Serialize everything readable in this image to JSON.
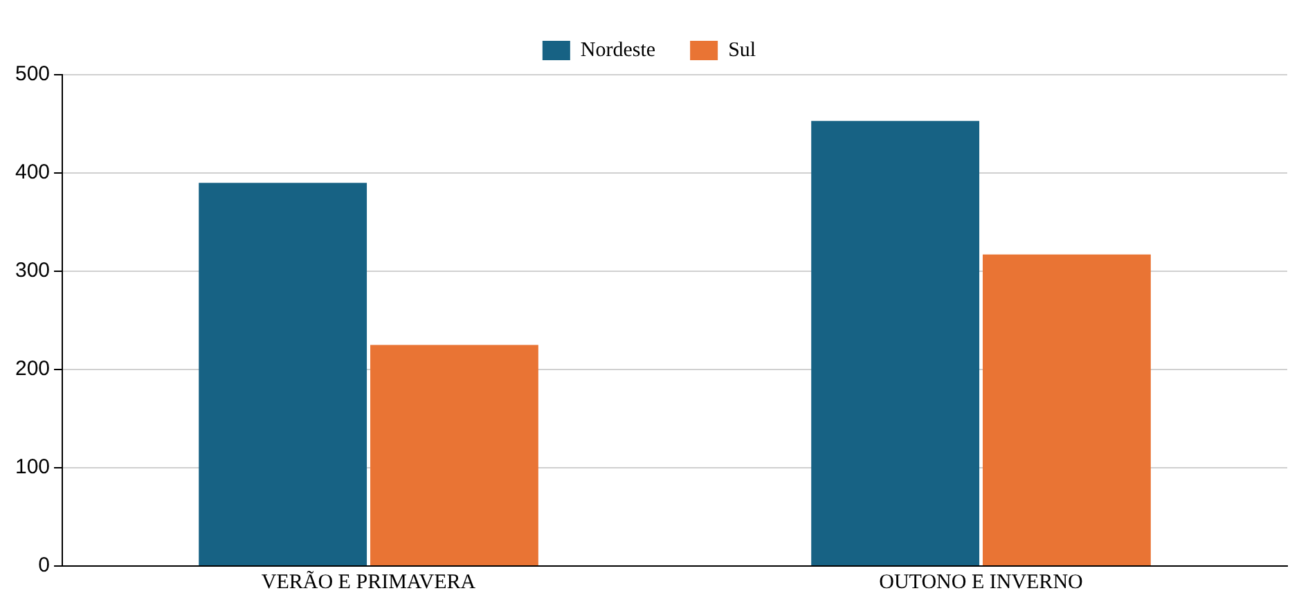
{
  "chart_data": {
    "type": "bar",
    "categories": [
      "VERÃO E PRIMAVERA",
      "OUTONO E INVERNO"
    ],
    "series": [
      {
        "name": "Nordeste",
        "color": "#176284",
        "values": [
          390,
          453
        ]
      },
      {
        "name": "Sul",
        "color": "#e97434",
        "values": [
          225,
          317
        ]
      }
    ],
    "ylim": [
      0,
      500
    ],
    "yticks": [
      0,
      100,
      200,
      300,
      400,
      500
    ],
    "grid": "y",
    "legend": "top"
  }
}
